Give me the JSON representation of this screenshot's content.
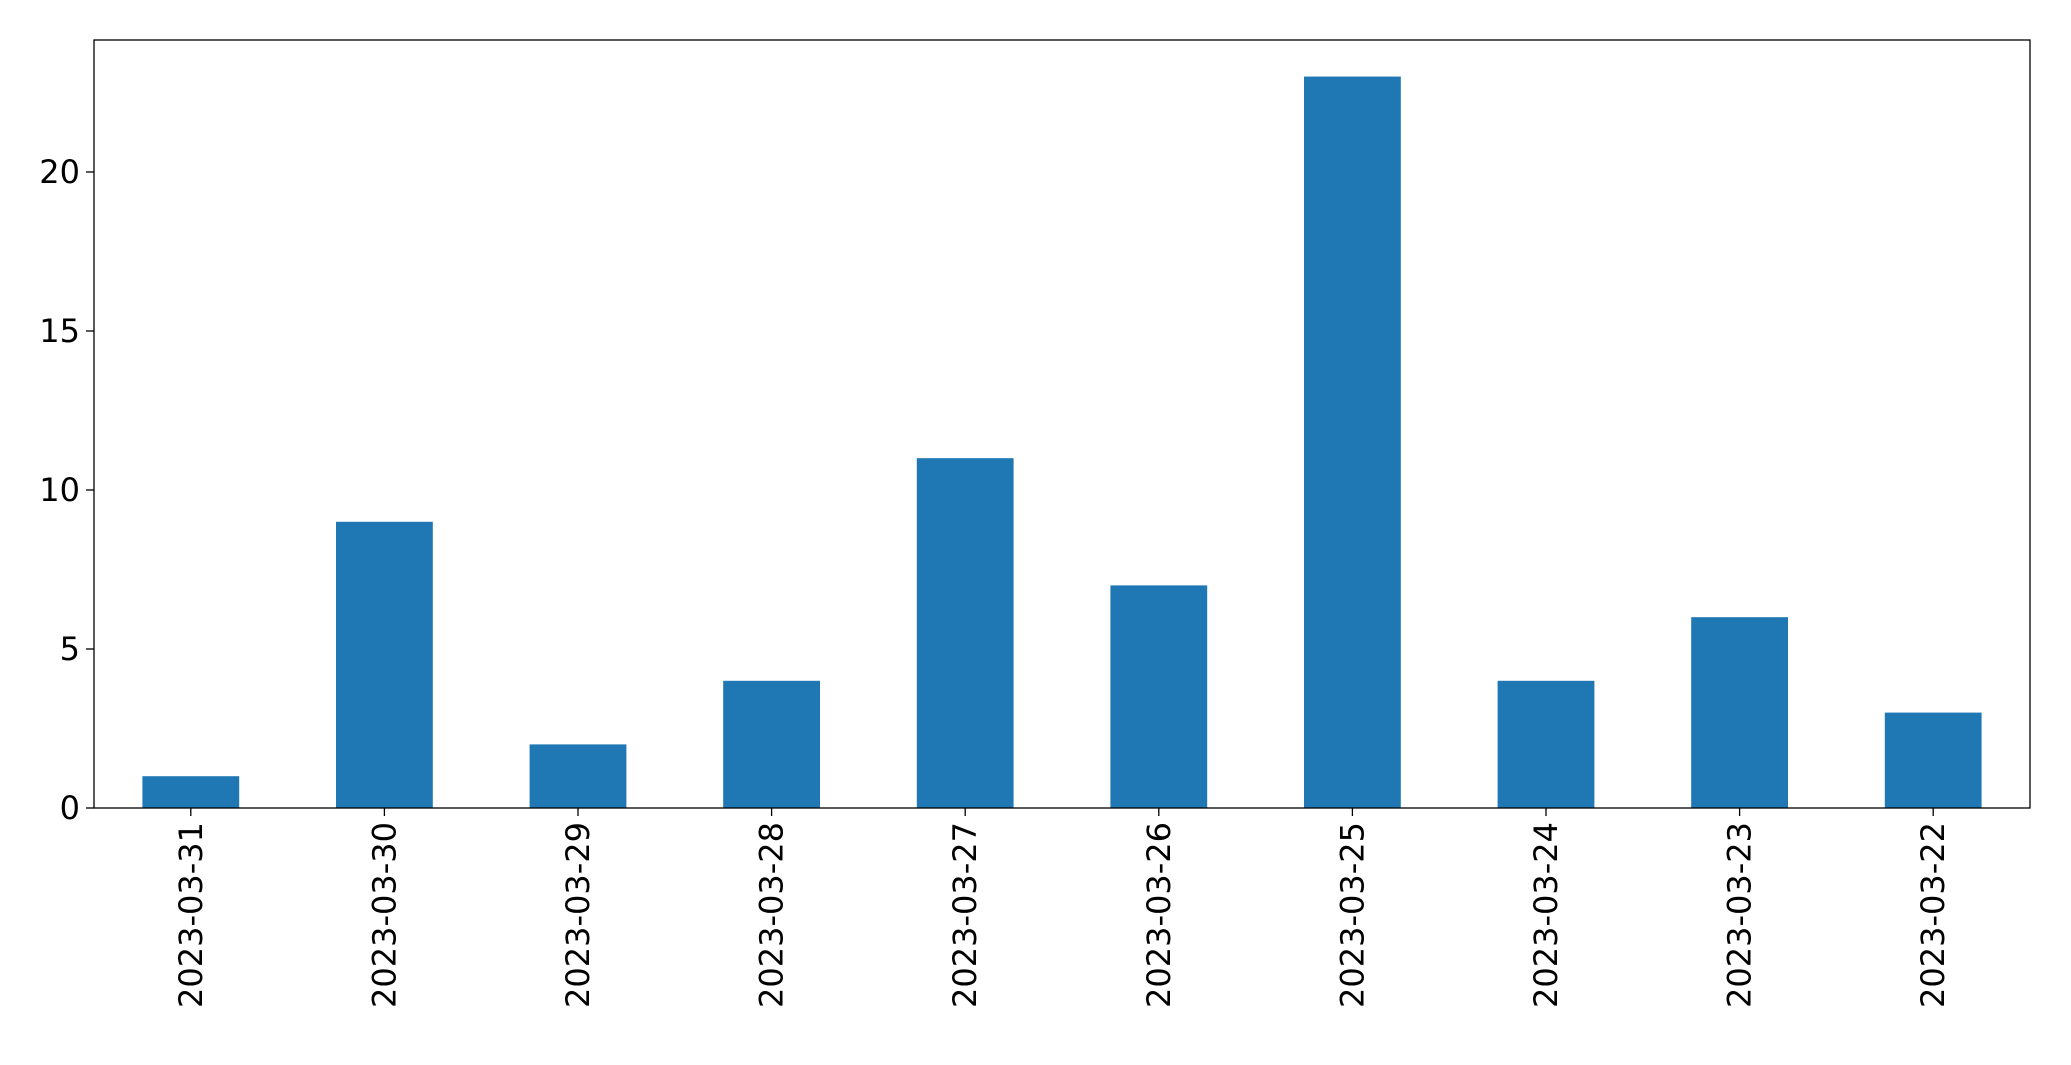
{
  "chart_data": {
    "type": "bar",
    "categories": [
      "2023-03-31",
      "2023-03-30",
      "2023-03-29",
      "2023-03-28",
      "2023-03-27",
      "2023-03-26",
      "2023-03-25",
      "2023-03-24",
      "2023-03-23",
      "2023-03-22"
    ],
    "values": [
      1,
      9,
      2,
      4,
      11,
      7,
      23,
      4,
      6,
      3
    ],
    "color": "#1f77b4",
    "ylim": [
      0,
      24.15
    ],
    "yticks": [
      0,
      5,
      10,
      15,
      20
    ],
    "grid": false
  }
}
